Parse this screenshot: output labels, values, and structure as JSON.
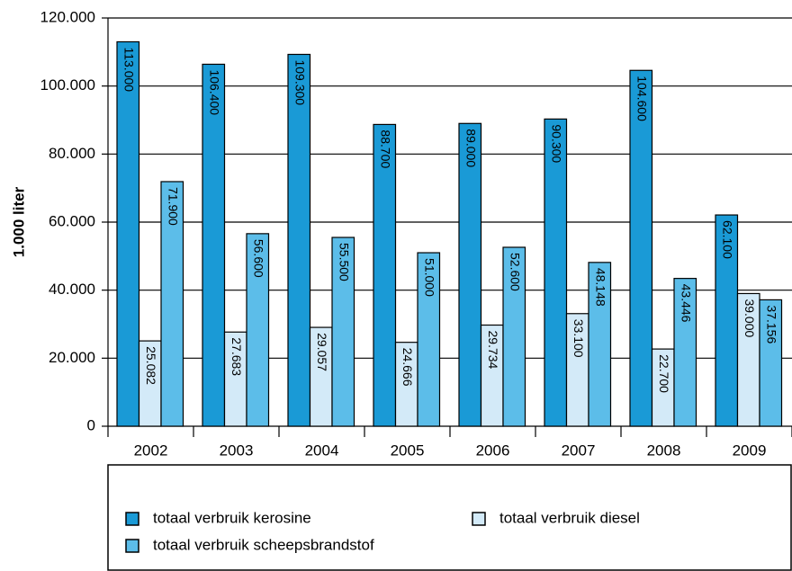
{
  "chart_data": {
    "type": "bar",
    "ylabel": "1.000 liter",
    "categories": [
      "2002",
      "2003",
      "2004",
      "2005",
      "2006",
      "2007",
      "2008",
      "2009"
    ],
    "series": [
      {
        "name": "totaal verbruik kerosine",
        "color": "#1a9ad6",
        "values": [
          113000,
          106400,
          109300,
          88700,
          89000,
          90300,
          104600,
          62100
        ],
        "value_labels": [
          "113.000",
          "106.400",
          "109.300",
          "88.700",
          "89.000",
          "90.300",
          "104.600",
          "62.100"
        ]
      },
      {
        "name": "totaal verbruik diesel",
        "color": "#d3eaf8",
        "values": [
          25082,
          27683,
          29057,
          24666,
          29734,
          33100,
          22700,
          39000
        ],
        "value_labels": [
          "25.082",
          "27.683",
          "29.057",
          "24.666",
          "29.734",
          "33.100",
          "22.700",
          "39.000"
        ]
      },
      {
        "name": "totaal verbruik scheepsbrandstof",
        "color": "#5cbde9",
        "values": [
          71900,
          56600,
          55500,
          51000,
          52600,
          48148,
          43446,
          37156
        ],
        "value_labels": [
          "71.900",
          "56.600",
          "55.500",
          "51.000",
          "52.600",
          "48.148",
          "43.446",
          "37.156"
        ]
      }
    ],
    "ylim": [
      0,
      120000
    ],
    "yticks": [
      0,
      {
        "value": 20000,
        "label": "20.000"
      },
      {
        "value": 40000,
        "label": "40.000"
      },
      {
        "value": 60000,
        "label": "60.000"
      },
      {
        "value": 80000,
        "label": "80.000"
      },
      {
        "value": 100000,
        "label": "100.000"
      },
      {
        "value": 120000,
        "label": "120.000"
      }
    ],
    "grid": true,
    "legend": "bottom"
  }
}
